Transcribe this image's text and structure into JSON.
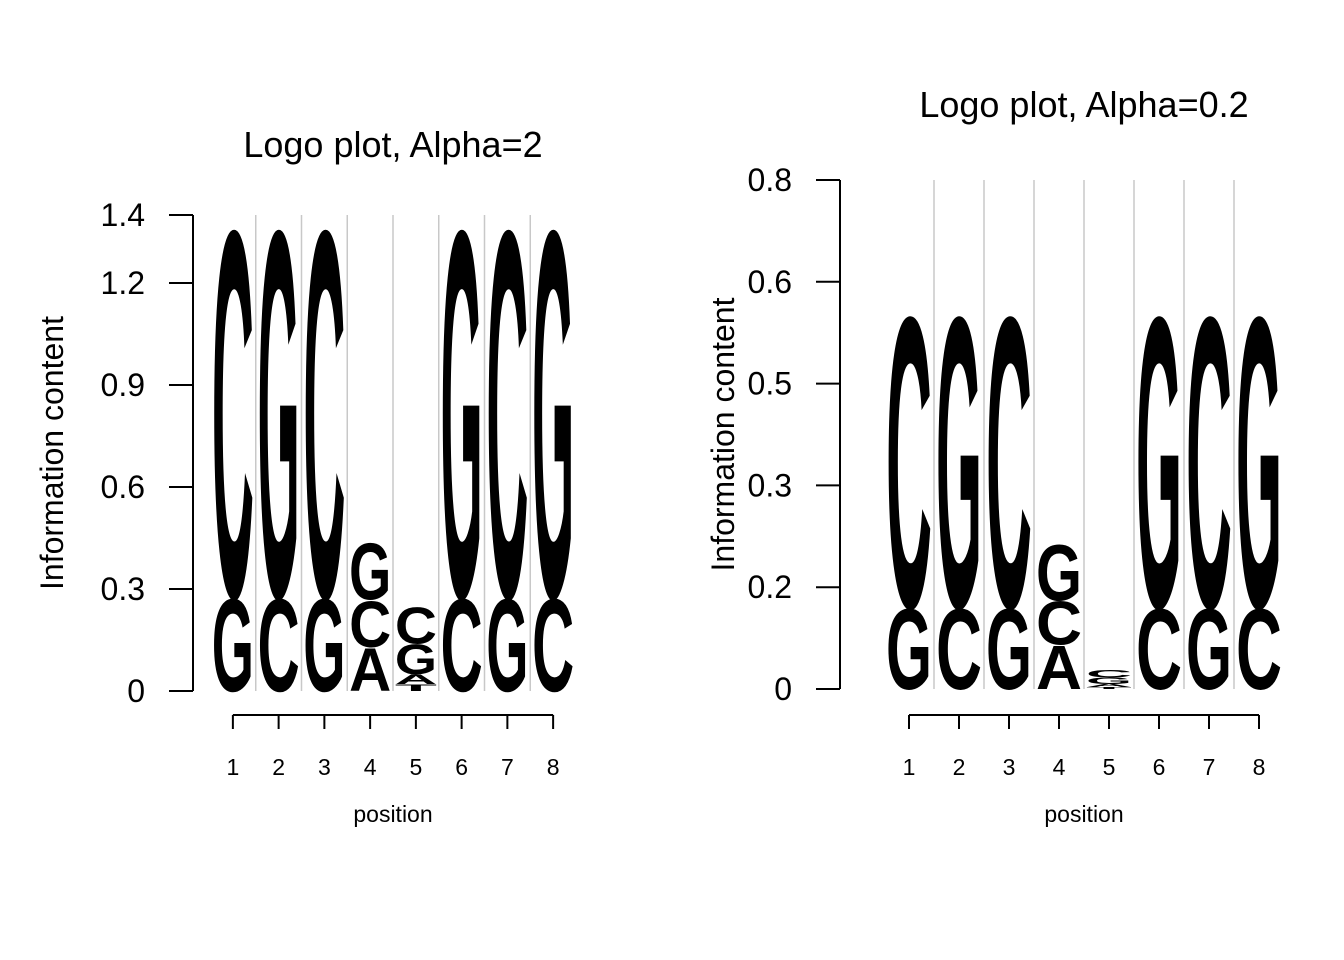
{
  "chart_data": [
    {
      "type": "logo",
      "title": "Logo plot, Alpha=2",
      "x_label": "position",
      "y_label": "Information content",
      "x": [
        1,
        2,
        3,
        4,
        5,
        6,
        7,
        8
      ],
      "xlim": [
        0.5,
        8.5
      ],
      "ylim": [
        0,
        1.4
      ],
      "yticks": [
        0,
        0.3,
        0.6,
        0.9,
        1.2,
        1.4
      ],
      "grid": true,
      "series": [
        {
          "name": "A",
          "color": "#d7191c",
          "values": [
            0,
            0,
            0,
            0.13,
            0.03,
            0,
            0,
            0
          ]
        },
        {
          "name": "C",
          "color": "#fdae61",
          "values": [
            1.11,
            0.28,
            1.11,
            0.14,
            0.11,
            0.28,
            1.11,
            0.28
          ]
        },
        {
          "name": "G",
          "color": "#abdda4",
          "values": [
            0.28,
            1.11,
            0.28,
            0.17,
            0.09,
            1.11,
            0.28,
            1.11
          ]
        },
        {
          "name": "T",
          "color": "#2b83ba",
          "values": [
            0,
            0,
            0,
            0,
            0.02,
            0,
            0,
            0
          ]
        }
      ]
    },
    {
      "type": "logo",
      "title": "Logo plot, Alpha=0.2",
      "x_label": "position",
      "y_label": "Information content",
      "x": [
        1,
        2,
        3,
        4,
        5,
        6,
        7,
        8
      ],
      "xlim": [
        0.5,
        8.5
      ],
      "ylim": [
        0,
        0.8
      ],
      "yticks": [
        0,
        {
          "value": 0.16,
          "label": "0.2"
        },
        {
          "value": 0.32,
          "label": "0.3"
        },
        {
          "value": 0.48,
          "label": "0.5"
        },
        {
          "value": 0.64,
          "label": "0.6"
        },
        0.8
      ],
      "grid": true,
      "series": [
        {
          "name": "A",
          "color": "#d7191c",
          "values": [
            0,
            0,
            0,
            0.07,
            0.005,
            0,
            0,
            0
          ]
        },
        {
          "name": "C",
          "color": "#fdae61",
          "values": [
            0.47,
            0.13,
            0.47,
            0.07,
            0.012,
            0.13,
            0.47,
            0.13
          ]
        },
        {
          "name": "G",
          "color": "#abdda4",
          "values": [
            0.13,
            0.47,
            0.13,
            0.09,
            0.01,
            0.47,
            0.13,
            0.47
          ]
        },
        {
          "name": "T",
          "color": "#2b83ba",
          "values": [
            0,
            0,
            0,
            0,
            0.003,
            0,
            0,
            0
          ]
        }
      ]
    }
  ]
}
